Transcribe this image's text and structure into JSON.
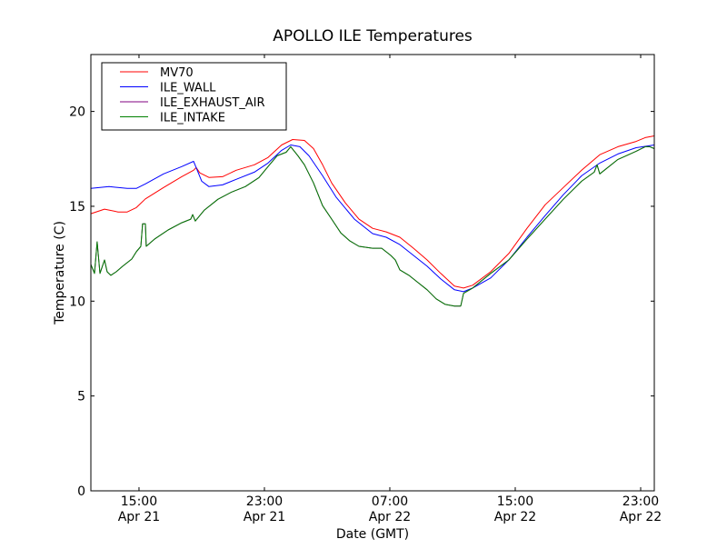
{
  "chart_data": {
    "type": "line",
    "title": "APOLLO ILE Temperatures",
    "xlabel": "Date (GMT)",
    "ylabel": "Temperature (C)",
    "x_units": "hours since Apr 21 00:00 GMT",
    "xlim": [
      11.93,
      47.87
    ],
    "ylim": [
      0,
      23
    ],
    "grid": false,
    "legend_placement": "top-left",
    "x_ticks": [
      {
        "value": 15,
        "time": "15:00",
        "date": "Apr 21"
      },
      {
        "value": 23,
        "time": "23:00",
        "date": "Apr 21"
      },
      {
        "value": 31,
        "time": "07:00",
        "date": "Apr 22"
      },
      {
        "value": 39,
        "time": "15:00",
        "date": "Apr 22"
      },
      {
        "value": 47,
        "time": "23:00",
        "date": "Apr 22"
      }
    ],
    "y_ticks": [
      {
        "value": 0,
        "label": "0"
      },
      {
        "value": 5,
        "label": "5"
      },
      {
        "value": 10,
        "label": "10"
      },
      {
        "value": 15,
        "label": "15"
      },
      {
        "value": 20,
        "label": "20"
      }
    ],
    "series": [
      {
        "name": "MV70",
        "color": "#ff0000",
        "x": [
          11.93,
          12.8,
          13.67,
          14.25,
          14.83,
          15.41,
          16.57,
          17.72,
          18.48,
          18.65,
          18.88,
          19.46,
          20.33,
          21.2,
          22.36,
          23.23,
          24.1,
          24.8,
          25.55,
          26.13,
          26.71,
          27.29,
          28.16,
          29.03,
          29.9,
          30.77,
          31.64,
          32.51,
          33.38,
          34.25,
          35.12,
          35.7,
          36.28,
          37.43,
          38.59,
          39.75,
          40.91,
          42.07,
          43.23,
          44.39,
          45.55,
          46.71,
          47.29,
          47.87
        ],
        "y": [
          14.61,
          14.85,
          14.7,
          14.7,
          14.93,
          15.39,
          15.99,
          16.56,
          16.9,
          17.04,
          16.76,
          16.52,
          16.56,
          16.9,
          17.19,
          17.57,
          18.23,
          18.52,
          18.47,
          18.04,
          17.19,
          16.23,
          15.18,
          14.32,
          13.84,
          13.65,
          13.37,
          12.79,
          12.17,
          11.46,
          10.79,
          10.69,
          10.84,
          11.55,
          12.51,
          13.84,
          15.08,
          15.99,
          16.9,
          17.72,
          18.14,
          18.42,
          18.62,
          18.71
        ]
      },
      {
        "name": "ILE_WALL",
        "color": "#0000ff",
        "x": [
          11.93,
          13.09,
          14.25,
          14.83,
          15.41,
          16.57,
          17.72,
          18.48,
          18.65,
          19.0,
          19.46,
          20.33,
          21.2,
          22.36,
          23.23,
          24.1,
          24.68,
          25.26,
          25.84,
          26.71,
          27.58,
          28.74,
          29.9,
          30.77,
          31.64,
          32.51,
          33.38,
          34.25,
          35.12,
          35.7,
          36.28,
          37.43,
          38.59,
          39.75,
          40.91,
          42.07,
          43.23,
          44.39,
          45.55,
          46.71,
          47.87
        ],
        "y": [
          15.94,
          16.04,
          15.94,
          15.94,
          16.18,
          16.71,
          17.09,
          17.37,
          17.04,
          16.32,
          16.04,
          16.13,
          16.42,
          16.8,
          17.28,
          17.95,
          18.23,
          18.14,
          17.66,
          16.61,
          15.47,
          14.32,
          13.56,
          13.37,
          12.98,
          12.41,
          11.84,
          11.17,
          10.6,
          10.5,
          10.69,
          11.22,
          12.17,
          13.37,
          14.51,
          15.61,
          16.61,
          17.28,
          17.76,
          18.09,
          18.23
        ]
      },
      {
        "name": "ILE_EXHAUST_AIR",
        "color": "#800080",
        "x": [
          11.93,
          12.16,
          12.33,
          12.51,
          12.8,
          12.97,
          13.2,
          13.55,
          13.96,
          14.54,
          14.83,
          15.12,
          15.23,
          15.41,
          15.46,
          15.99,
          16.86,
          17.72,
          18.3,
          18.42,
          18.59,
          19.17,
          20.04,
          20.91,
          21.78,
          22.65,
          23.23,
          23.81,
          24.39,
          24.68,
          25.14,
          25.55,
          26.13,
          26.71,
          27.29,
          27.87,
          28.45,
          29.03,
          29.9,
          30.48,
          31.06,
          31.35,
          31.64,
          32.22,
          32.8,
          33.38,
          33.96,
          34.54,
          35.12,
          35.52,
          35.7,
          36.28,
          37.43,
          38.59,
          39.75,
          40.91,
          42.07,
          43.23,
          44.04,
          44.22,
          44.39,
          45.55,
          46.71,
          47.29,
          47.58,
          47.87
        ],
        "y": [
          11.93,
          11.46,
          13.13,
          11.46,
          12.17,
          11.55,
          11.36,
          11.55,
          11.84,
          12.22,
          12.6,
          12.89,
          14.08,
          14.08,
          12.89,
          13.27,
          13.75,
          14.13,
          14.32,
          14.56,
          14.22,
          14.8,
          15.37,
          15.75,
          16.04,
          16.51,
          17.09,
          17.66,
          17.85,
          18.14,
          17.66,
          17.19,
          16.23,
          15.03,
          14.32,
          13.6,
          13.17,
          12.89,
          12.79,
          12.79,
          12.41,
          12.17,
          11.65,
          11.36,
          10.98,
          10.6,
          10.12,
          9.83,
          9.74,
          9.74,
          10.41,
          10.69,
          11.46,
          12.17,
          13.27,
          14.32,
          15.37,
          16.32,
          16.8,
          17.19,
          16.71,
          17.47,
          17.9,
          18.14,
          18.14,
          18.04
        ]
      },
      {
        "name": "ILE_INTAKE",
        "color": "#008000",
        "x": [
          11.93,
          12.16,
          12.33,
          12.51,
          12.8,
          12.97,
          13.2,
          13.55,
          13.96,
          14.54,
          14.83,
          15.12,
          15.23,
          15.41,
          15.46,
          15.99,
          16.86,
          17.72,
          18.3,
          18.42,
          18.59,
          19.17,
          20.04,
          20.91,
          21.78,
          22.65,
          23.23,
          23.81,
          24.39,
          24.68,
          25.14,
          25.55,
          26.13,
          26.71,
          27.29,
          27.87,
          28.45,
          29.03,
          29.9,
          30.48,
          31.06,
          31.35,
          31.64,
          32.22,
          32.8,
          33.38,
          33.96,
          34.54,
          35.12,
          35.52,
          35.7,
          36.28,
          37.43,
          38.59,
          39.75,
          40.91,
          42.07,
          43.23,
          44.04,
          44.22,
          44.39,
          45.55,
          46.71,
          47.29,
          47.58,
          47.87
        ],
        "y": [
          11.93,
          11.46,
          13.13,
          11.46,
          12.17,
          11.55,
          11.36,
          11.55,
          11.84,
          12.22,
          12.6,
          12.89,
          14.08,
          14.08,
          12.89,
          13.27,
          13.75,
          14.13,
          14.32,
          14.56,
          14.22,
          14.8,
          15.37,
          15.75,
          16.04,
          16.51,
          17.09,
          17.66,
          17.85,
          18.14,
          17.66,
          17.19,
          16.23,
          15.03,
          14.32,
          13.6,
          13.17,
          12.89,
          12.79,
          12.79,
          12.41,
          12.17,
          11.65,
          11.36,
          10.98,
          10.6,
          10.12,
          9.83,
          9.74,
          9.74,
          10.41,
          10.69,
          11.46,
          12.17,
          13.27,
          14.32,
          15.37,
          16.32,
          16.8,
          17.19,
          16.71,
          17.47,
          17.9,
          18.14,
          18.14,
          18.04
        ]
      }
    ]
  }
}
